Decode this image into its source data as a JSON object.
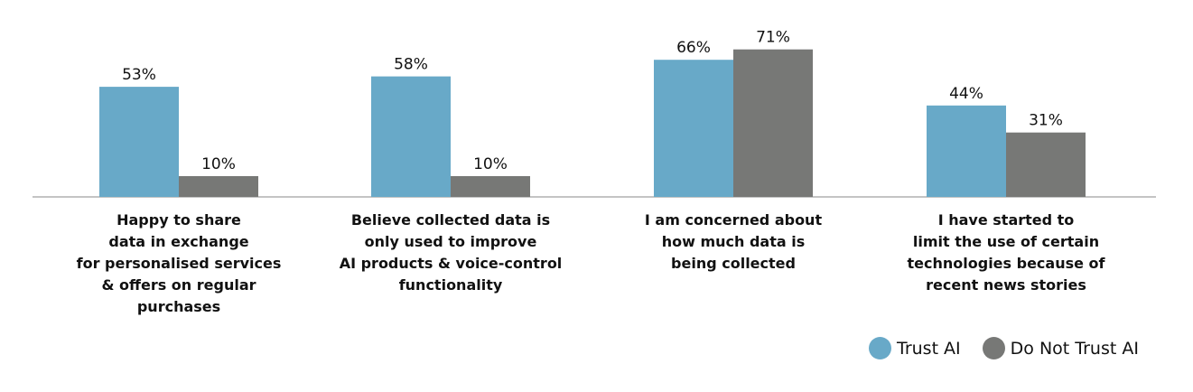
{
  "chart_data": {
    "type": "bar",
    "categories": [
      "Happy to share data in exchange for personalised services & offers on regular purchases",
      "Believe collected data is only used to improve AI products & voice-control functionality",
      "I am concerned about how much data is being collected",
      "I have started to limit the use of certain technologies because of recent news stories"
    ],
    "category_lines": [
      [
        "Happy to share",
        "data in exchange",
        "for personalised services",
        "& offers on regular",
        "purchases"
      ],
      [
        "Believe collected data is",
        "only used to improve",
        "AI products & voice-control",
        "functionality"
      ],
      [
        "I am concerned about",
        "how much data is",
        "being collected"
      ],
      [
        "I have started to",
        "limit the use of certain",
        "technologies because of",
        "recent news stories"
      ]
    ],
    "series": [
      {
        "name": "Trust AI",
        "color": "#68a9c8",
        "values": [
          53,
          58,
          66,
          44
        ]
      },
      {
        "name": "Do Not Trust AI",
        "color": "#777876",
        "values": [
          10,
          10,
          71,
          31
        ]
      }
    ],
    "value_suffix": "%",
    "ylim": [
      0,
      75
    ],
    "grid": false,
    "legend_position": "bottom-right"
  }
}
